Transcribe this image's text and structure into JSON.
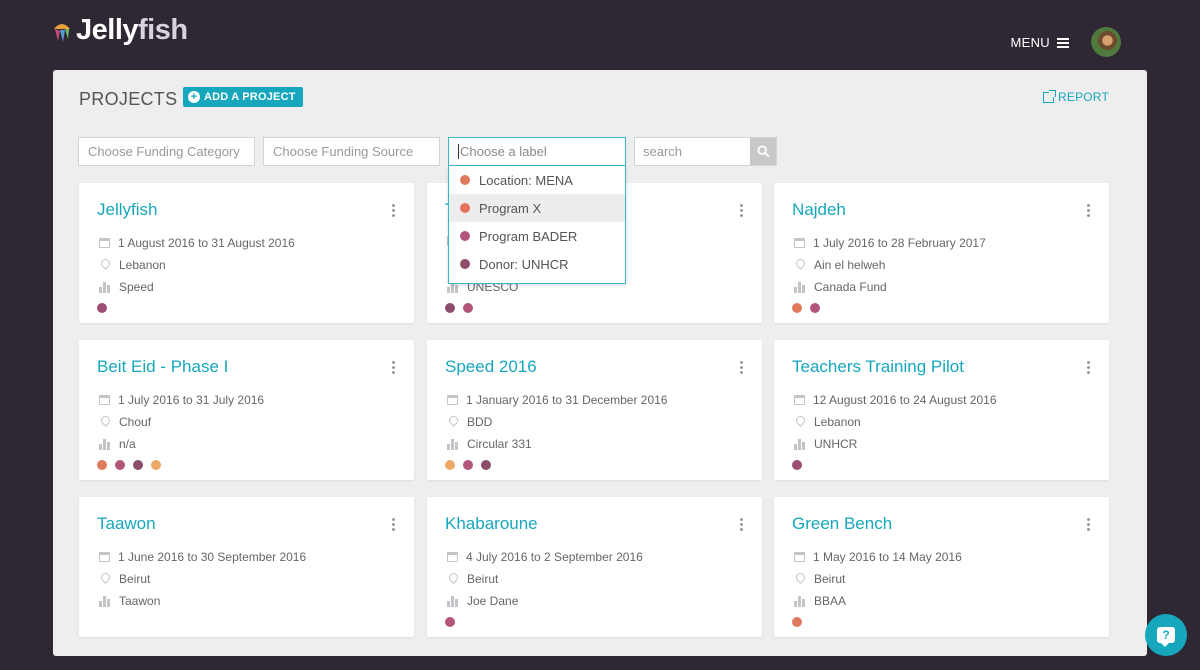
{
  "header": {
    "logo_text_main": "Jelly",
    "logo_text_accent": "fish",
    "menu_label": "MENU"
  },
  "page": {
    "title": "PROJECTS",
    "add_button_label": "ADD A PROJECT",
    "report_label": "REPORT"
  },
  "filters": {
    "funding_category_placeholder": "Choose Funding Category",
    "funding_source_placeholder": "Choose Funding Source",
    "label_placeholder": "Choose a label",
    "search_placeholder": "search"
  },
  "label_dropdown": {
    "items": [
      {
        "label": "Location: MENA",
        "color": "#e07a5f",
        "active": false
      },
      {
        "label": "Program X",
        "color": "#e8705e",
        "active": true
      },
      {
        "label": "Program BADER",
        "color": "#b4547a",
        "active": false
      },
      {
        "label": "Donor: UNHCR",
        "color": "#8b4d6b",
        "active": false
      }
    ]
  },
  "colors": {
    "accent": "#16a7bd",
    "background": "#2f2733",
    "panel": "#eeeeef"
  },
  "projects": [
    {
      "title": "Jellyfish",
      "dates": "1 August 2016 to 31 August 2016",
      "location": "Lebanon",
      "funder": "Speed",
      "labels": [
        "#9c4f72"
      ]
    },
    {
      "title": "T",
      "dates": "",
      "location": "",
      "funder": "UNESCO",
      "labels": [
        "#8b4d6b",
        "#b4547a"
      ]
    },
    {
      "title": "Najdeh",
      "dates": "1 July 2016 to 28 February 2017",
      "location": "Ain el helweh",
      "funder": "Canada Fund",
      "labels": [
        "#e07a5f",
        "#b4547a"
      ]
    },
    {
      "title": "Beit Eid - Phase I",
      "dates": "1 July 2016 to 31 July 2016",
      "location": "Chouf",
      "funder": "n/a",
      "labels": [
        "#e07a5f",
        "#b4547a",
        "#8b4d6b",
        "#eea866"
      ]
    },
    {
      "title": "Speed 2016",
      "dates": "1 January 2016 to 31 December 2016",
      "location": "BDD",
      "funder": "Circular 331",
      "labels": [
        "#eea866",
        "#b4547a",
        "#8b4d6b"
      ]
    },
    {
      "title": "Teachers Training Pilot",
      "dates": "12 August 2016 to 24 August 2016",
      "location": "Lebanon",
      "funder": "UNHCR",
      "labels": [
        "#9c4f72"
      ]
    },
    {
      "title": "Taawon",
      "dates": "1 June 2016 to 30 September 2016",
      "location": "Beirut",
      "funder": "Taawon",
      "labels": []
    },
    {
      "title": "Khabaroune",
      "dates": "4 July 2016 to 2 September 2016",
      "location": "Beirut",
      "funder": "Joe Dane",
      "labels": [
        "#b4547a"
      ]
    },
    {
      "title": "Green Bench",
      "dates": "1 May 2016 to 14 May 2016",
      "location": "Beirut",
      "funder": "BBAA",
      "labels": [
        "#e07a5f"
      ]
    }
  ]
}
